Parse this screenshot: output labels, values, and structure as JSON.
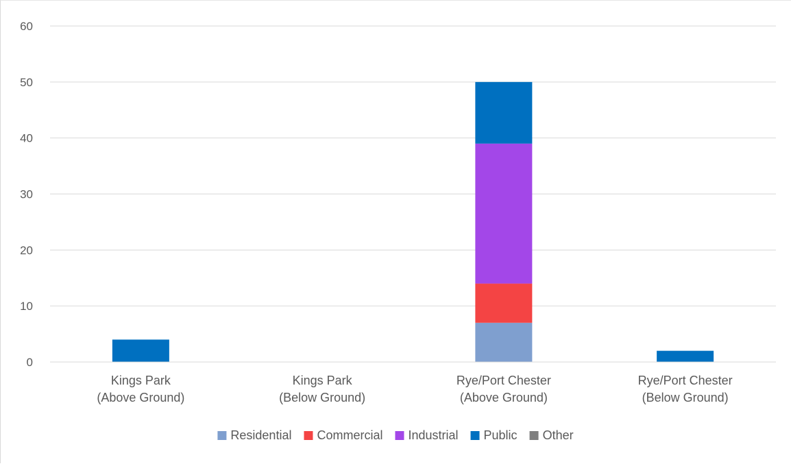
{
  "chart_data": {
    "type": "bar",
    "stacked": true,
    "categories": [
      [
        "Kings Park",
        "(Above Ground)"
      ],
      [
        "Kings Park",
        "(Below Ground)"
      ],
      [
        "Rye/Port Chester",
        "(Above Ground)"
      ],
      [
        "Rye/Port Chester",
        "(Below Ground)"
      ]
    ],
    "series": [
      {
        "name": "Residential",
        "color": "#7F9FCF",
        "values": [
          0,
          0,
          7,
          0
        ]
      },
      {
        "name": "Commercial",
        "color": "#F44444",
        "values": [
          0,
          0,
          7,
          0
        ]
      },
      {
        "name": "Industrial",
        "color": "#A347E8",
        "values": [
          0,
          0,
          25,
          0
        ]
      },
      {
        "name": "Public",
        "color": "#0070C0",
        "values": [
          4,
          0,
          11,
          2
        ]
      },
      {
        "name": "Other",
        "color": "#7F7F7F",
        "values": [
          0,
          0,
          0,
          0
        ]
      }
    ],
    "ylim": [
      0,
      60
    ],
    "yticks": [
      0,
      10,
      20,
      30,
      40,
      50,
      60
    ],
    "grid": true,
    "legend_position": "bottom",
    "title": "",
    "xlabel": "",
    "ylabel": ""
  }
}
